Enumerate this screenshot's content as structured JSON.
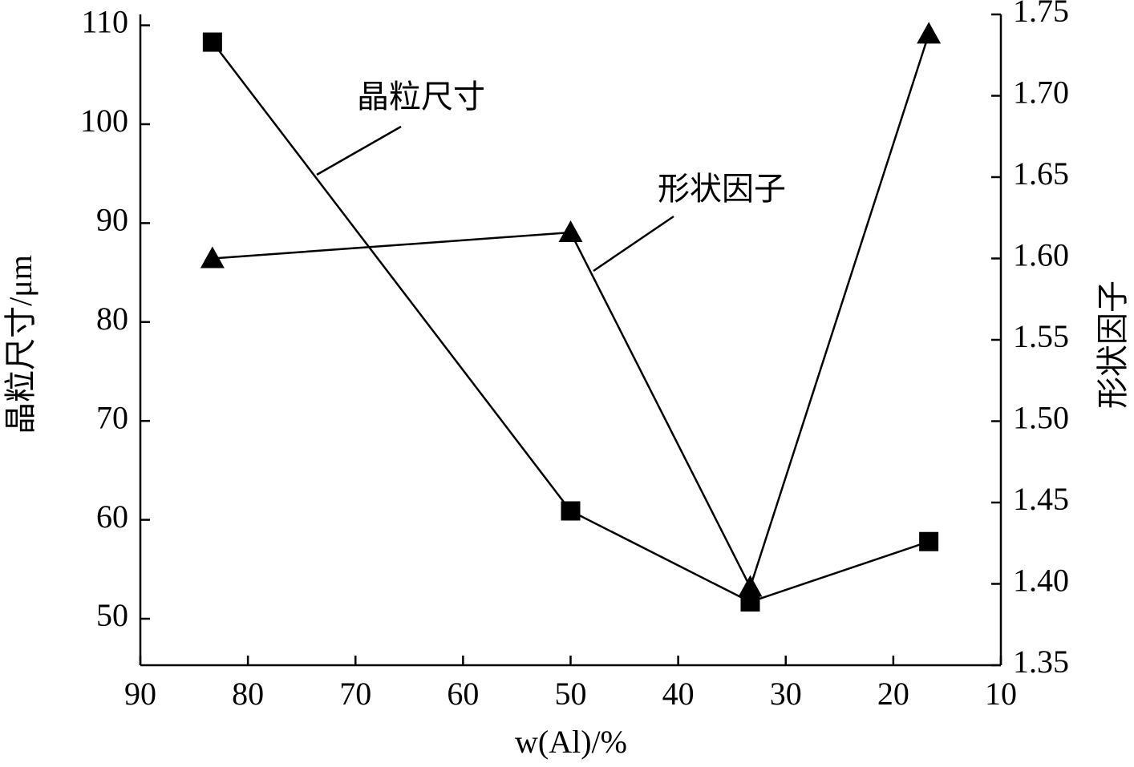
{
  "chart_data": {
    "type": "line",
    "x_label": "w(Al)/%",
    "y_label": "晶粒尺寸/μm",
    "y2_label": "形状因子",
    "x": [
      83.3,
      50,
      33.3,
      16.7
    ],
    "xlim": [
      90,
      10
    ],
    "xticks": [
      90,
      80,
      70,
      60,
      50,
      40,
      30,
      20,
      10
    ],
    "ylim": [
      45.3,
      111.1
    ],
    "yticks": [
      50,
      60,
      70,
      80,
      90,
      100,
      110
    ],
    "y2lim": [
      1.35,
      1.75
    ],
    "y2ticks": [
      {
        "value": 1.35,
        "label": "1.35"
      },
      {
        "value": 1.4,
        "label": "1.40"
      },
      {
        "value": 1.45,
        "label": "1.45"
      },
      {
        "value": 1.5,
        "label": "1.50"
      },
      {
        "value": 1.55,
        "label": "1.55"
      },
      {
        "value": 1.6,
        "label": "1.60"
      },
      {
        "value": 1.65,
        "label": "1.65"
      },
      {
        "value": 1.7,
        "label": "1.70"
      },
      {
        "value": 1.75,
        "label": "1.75"
      }
    ],
    "series": [
      {
        "name": "晶粒尺寸",
        "color": "#000000",
        "marker": "square",
        "values": [
          108.3,
          60.9,
          51.7,
          57.8
        ]
      },
      {
        "name": "形状因子",
        "color": "#000000",
        "marker": "triangle",
        "axis": "y2",
        "values": [
          1.6,
          1.616,
          1.398,
          1.738
        ]
      }
    ]
  }
}
